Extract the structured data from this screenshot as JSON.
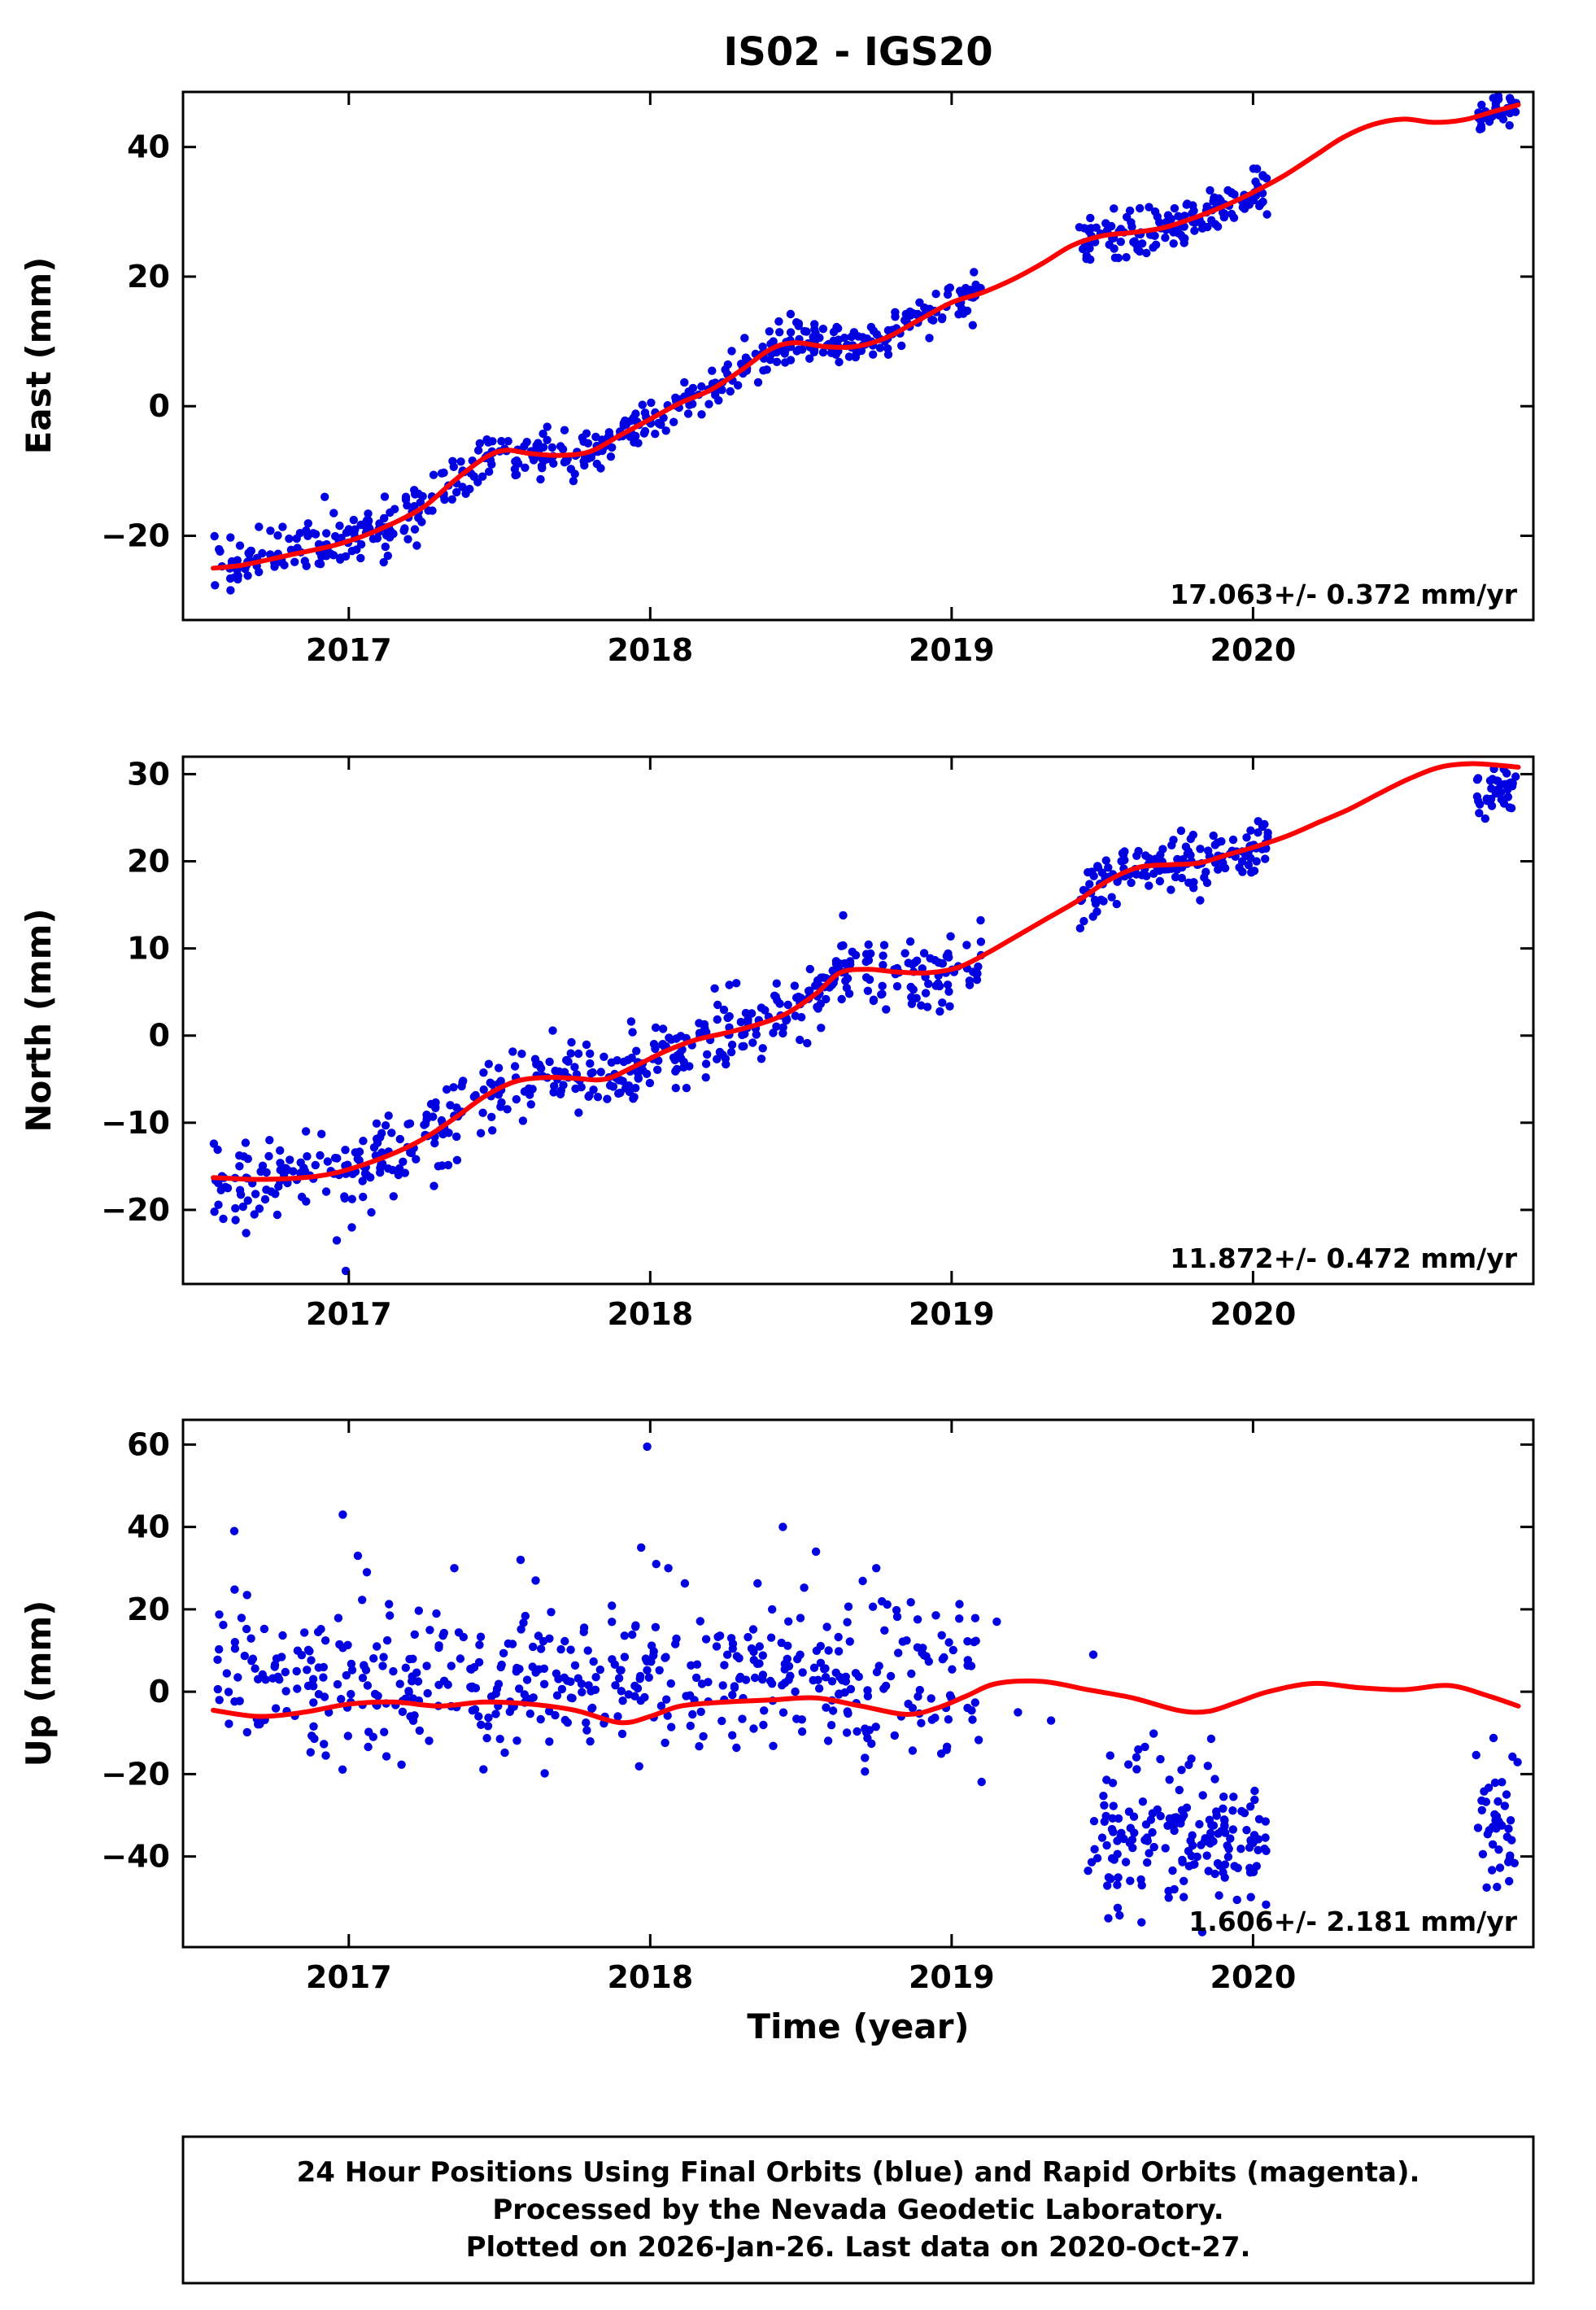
{
  "title": "IS02 - IGS20",
  "xlabel": "Time (year)",
  "caption": {
    "line1": "24 Hour Positions Using Final Orbits (blue) and Rapid Orbits (magenta).",
    "line2": "Processed by the Nevada Geodetic Laboratory.",
    "line3": "Plotted on 2026-Jan-26. Last data on 2020-Oct-27."
  },
  "colors": {
    "points": "#0000e0",
    "trend": "#ff0000",
    "frame": "#000000"
  },
  "chart_data": [
    {
      "type": "scatter",
      "id": "east",
      "ylabel": "East (mm)",
      "rate_label": "17.063+/- 0.372 mm/yr",
      "xlim": [
        2016.45,
        2020.93
      ],
      "ylim": [
        -33,
        48.5
      ],
      "xticks": [
        2017,
        2018,
        2019,
        2020
      ],
      "yticks": [
        -20,
        0,
        20,
        40
      ],
      "trend": [
        [
          2016.55,
          -25
        ],
        [
          2016.65,
          -24.5
        ],
        [
          2016.8,
          -23
        ],
        [
          2016.95,
          -21.5
        ],
        [
          2017.05,
          -20
        ],
        [
          2017.15,
          -18
        ],
        [
          2017.25,
          -15.5
        ],
        [
          2017.35,
          -11.5
        ],
        [
          2017.45,
          -8
        ],
        [
          2017.52,
          -6.8
        ],
        [
          2017.6,
          -7.3
        ],
        [
          2017.7,
          -7.6
        ],
        [
          2017.8,
          -7
        ],
        [
          2017.9,
          -4.5
        ],
        [
          2018,
          -2
        ],
        [
          2018.1,
          0.5
        ],
        [
          2018.2,
          2.5
        ],
        [
          2018.3,
          5.5
        ],
        [
          2018.4,
          8.8
        ],
        [
          2018.48,
          9.8
        ],
        [
          2018.58,
          9.2
        ],
        [
          2018.68,
          9.2
        ],
        [
          2018.78,
          10.5
        ],
        [
          2018.88,
          13
        ],
        [
          2019,
          16
        ],
        [
          2019.1,
          17.5
        ],
        [
          2019.2,
          19.5
        ],
        [
          2019.3,
          22
        ],
        [
          2019.4,
          24.8
        ],
        [
          2019.5,
          26.3
        ],
        [
          2019.6,
          26.8
        ],
        [
          2019.7,
          27.5
        ],
        [
          2019.8,
          29
        ],
        [
          2019.9,
          30.8
        ],
        [
          2020,
          33
        ],
        [
          2020.1,
          35.5
        ],
        [
          2020.2,
          38.5
        ],
        [
          2020.3,
          41.5
        ],
        [
          2020.4,
          43.5
        ],
        [
          2020.5,
          44.3
        ],
        [
          2020.6,
          43.8
        ],
        [
          2020.7,
          44.2
        ],
        [
          2020.8,
          45.5
        ],
        [
          2020.88,
          46.5
        ]
      ],
      "scatter_segments": [
        {
          "x0": 2016.55,
          "x1": 2017.45,
          "sd": 2.0,
          "n": 170,
          "follow": true
        },
        {
          "x0": 2017.45,
          "x1": 2018.6,
          "sd": 1.7,
          "n": 230,
          "follow": true
        },
        {
          "x0": 2018.6,
          "x1": 2019.1,
          "sd": 1.6,
          "n": 100,
          "follow": true
        },
        {
          "x0": 2019.42,
          "x1": 2020.05,
          "sd": 1.8,
          "n": 150,
          "follow": true
        },
        {
          "x0": 2020.74,
          "x1": 2020.88,
          "sd": 1.2,
          "n": 35,
          "follow": true
        }
      ],
      "outliers": [
        [
          2016.92,
          -14
        ],
        [
          2016.95,
          -16.5
        ],
        [
          2017.0,
          -19
        ],
        [
          2019.07,
          12.5
        ]
      ],
      "seed": 11
    },
    {
      "type": "scatter",
      "id": "north",
      "ylabel": "North (mm)",
      "rate_label": "11.872+/- 0.472 mm/yr",
      "xlim": [
        2016.45,
        2020.93
      ],
      "ylim": [
        -28.5,
        32
      ],
      "xticks": [
        2017,
        2018,
        2019,
        2020
      ],
      "yticks": [
        -20,
        -10,
        0,
        10,
        20,
        30
      ],
      "trend": [
        [
          2016.55,
          -16.3
        ],
        [
          2016.7,
          -16.5
        ],
        [
          2016.85,
          -16.3
        ],
        [
          2016.95,
          -15.8
        ],
        [
          2017.05,
          -14.8
        ],
        [
          2017.15,
          -13.5
        ],
        [
          2017.25,
          -11.8
        ],
        [
          2017.35,
          -9.5
        ],
        [
          2017.45,
          -7
        ],
        [
          2017.55,
          -5.3
        ],
        [
          2017.65,
          -4.8
        ],
        [
          2017.75,
          -4.9
        ],
        [
          2017.85,
          -5
        ],
        [
          2017.95,
          -3.5
        ],
        [
          2018.05,
          -1.8
        ],
        [
          2018.15,
          -0.5
        ],
        [
          2018.25,
          0.3
        ],
        [
          2018.35,
          1.2
        ],
        [
          2018.45,
          2.5
        ],
        [
          2018.55,
          4.8
        ],
        [
          2018.63,
          7.2
        ],
        [
          2018.72,
          7.6
        ],
        [
          2018.82,
          7.3
        ],
        [
          2018.92,
          7.2
        ],
        [
          2019.02,
          7.8
        ],
        [
          2019.12,
          9.5
        ],
        [
          2019.22,
          11.5
        ],
        [
          2019.32,
          13.5
        ],
        [
          2019.42,
          15.5
        ],
        [
          2019.52,
          17.8
        ],
        [
          2019.62,
          19.3
        ],
        [
          2019.72,
          19.6
        ],
        [
          2019.82,
          19.8
        ],
        [
          2019.92,
          20.8
        ],
        [
          2020.02,
          21.8
        ],
        [
          2020.12,
          23
        ],
        [
          2020.22,
          24.5
        ],
        [
          2020.32,
          26
        ],
        [
          2020.42,
          27.8
        ],
        [
          2020.52,
          29.5
        ],
        [
          2020.62,
          30.8
        ],
        [
          2020.72,
          31.2
        ],
        [
          2020.82,
          31
        ],
        [
          2020.88,
          30.8
        ]
      ],
      "scatter_segments": [
        {
          "x0": 2016.55,
          "x1": 2017.45,
          "sd": 2.3,
          "n": 170,
          "follow": true
        },
        {
          "x0": 2017.45,
          "x1": 2018.6,
          "sd": 2.0,
          "n": 230,
          "follow": true
        },
        {
          "x0": 2018.6,
          "x1": 2019.1,
          "sd": 1.8,
          "n": 100,
          "follow": true
        },
        {
          "x0": 2019.42,
          "x1": 2020.05,
          "sd": 1.6,
          "n": 150,
          "follow": true
        },
        {
          "x0": 2020.74,
          "x1": 2020.88,
          "sd": 1.4,
          "n": 35,
          "base": [
            27.5,
            28.5
          ]
        }
      ],
      "outliers": [
        [
          2016.96,
          -23.5
        ],
        [
          2016.99,
          -27
        ],
        [
          2017.01,
          -22
        ],
        [
          2018.64,
          13.8
        ],
        [
          2019.06,
          5.8
        ]
      ],
      "seed": 22
    },
    {
      "type": "scatter",
      "id": "up",
      "ylabel": "Up (mm)",
      "rate_label": "1.606+/- 2.181 mm/yr",
      "xlim": [
        2016.45,
        2020.93
      ],
      "ylim": [
        -62,
        66
      ],
      "xticks": [
        2017,
        2018,
        2019,
        2020
      ],
      "yticks": [
        -40,
        -20,
        0,
        20,
        40,
        60
      ],
      "trend": [
        [
          2016.55,
          -4.5
        ],
        [
          2016.7,
          -6
        ],
        [
          2016.85,
          -5
        ],
        [
          2017,
          -3
        ],
        [
          2017.15,
          -2.5
        ],
        [
          2017.3,
          -3.5
        ],
        [
          2017.45,
          -2.5
        ],
        [
          2017.6,
          -3
        ],
        [
          2017.75,
          -4.5
        ],
        [
          2017.9,
          -7.5
        ],
        [
          2018,
          -6
        ],
        [
          2018.1,
          -3.5
        ],
        [
          2018.25,
          -2.5
        ],
        [
          2018.4,
          -2
        ],
        [
          2018.55,
          -1.5
        ],
        [
          2018.7,
          -3.5
        ],
        [
          2018.85,
          -5.5
        ],
        [
          2018.95,
          -4
        ],
        [
          2019.05,
          -1
        ],
        [
          2019.15,
          2
        ],
        [
          2019.3,
          2.5
        ],
        [
          2019.45,
          0.5
        ],
        [
          2019.6,
          -1.5
        ],
        [
          2019.75,
          -4.5
        ],
        [
          2019.85,
          -4.8
        ],
        [
          2019.95,
          -2.5
        ],
        [
          2020.05,
          0
        ],
        [
          2020.2,
          2
        ],
        [
          2020.35,
          1
        ],
        [
          2020.5,
          0.5
        ],
        [
          2020.65,
          1.5
        ],
        [
          2020.78,
          -1
        ],
        [
          2020.88,
          -3.5
        ]
      ],
      "scatter_segments": [
        {
          "x0": 2016.55,
          "x1": 2017.45,
          "sd": 9,
          "n": 170,
          "base": [
            3,
            1
          ]
        },
        {
          "x0": 2017.45,
          "x1": 2018.6,
          "sd": 9,
          "n": 230,
          "base": [
            2,
            2
          ]
        },
        {
          "x0": 2018.6,
          "x1": 2019.1,
          "sd": 10,
          "n": 100,
          "base": [
            4,
            4
          ]
        },
        {
          "x0": 2019.45,
          "x1": 2020.05,
          "sd": 9,
          "n": 170,
          "base": [
            -33,
            -37
          ]
        },
        {
          "x0": 2020.74,
          "x1": 2020.88,
          "sd": 8,
          "n": 42,
          "base": [
            -29,
            -33
          ]
        }
      ],
      "outliers": [
        [
          2016.62,
          39
        ],
        [
          2016.98,
          43
        ],
        [
          2017.03,
          33
        ],
        [
          2017.06,
          29
        ],
        [
          2017.35,
          30
        ],
        [
          2017.57,
          32
        ],
        [
          2017.62,
          27
        ],
        [
          2017.97,
          35
        ],
        [
          2017.99,
          59.5
        ],
        [
          2018.02,
          31
        ],
        [
          2018.06,
          30
        ],
        [
          2018.44,
          40
        ],
        [
          2018.55,
          34
        ],
        [
          2018.75,
          30
        ],
        [
          2019.15,
          17
        ],
        [
          2019.22,
          -5
        ],
        [
          2019.33,
          -7
        ],
        [
          2019.47,
          9
        ],
        [
          2019.52,
          -55
        ],
        [
          2019.63,
          -56
        ],
        [
          2019.72,
          -50
        ],
        [
          2019.85,
          -18
        ]
      ],
      "seed": 33
    }
  ]
}
